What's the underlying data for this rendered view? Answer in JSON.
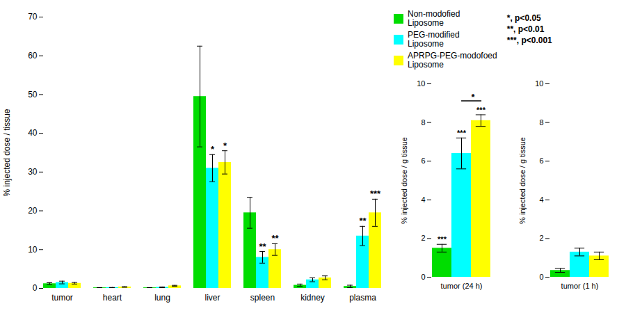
{
  "chart_data": [
    {
      "type": "bar",
      "categories": [
        "tumor",
        "heart",
        "lung",
        "liver",
        "spleen",
        "kidney",
        "plasma"
      ],
      "series": [
        {
          "name": "Non-modofied\nLiposome",
          "color": "#00dd00",
          "values": [
            1.2,
            0.15,
            0.15,
            49.5,
            19.5,
            0.8,
            0.5
          ],
          "errors": [
            0.25,
            0.04,
            0.04,
            13.0,
            4.0,
            0.3,
            0.3
          ]
        },
        {
          "name": "PEG-modified\nLiposome",
          "color": "#00ffff",
          "values": [
            1.5,
            0.18,
            0.25,
            31.0,
            8.0,
            2.2,
            13.5
          ],
          "errors": [
            0.35,
            0.04,
            0.08,
            3.5,
            1.5,
            0.5,
            2.5
          ]
        },
        {
          "name": "APRPG-PEG-modofoed\nLiposome",
          "color": "#ffff00",
          "values": [
            1.3,
            0.35,
            0.65,
            32.5,
            10.0,
            2.7,
            19.5
          ],
          "errors": [
            0.2,
            0.08,
            0.12,
            3.0,
            1.5,
            0.5,
            3.5
          ]
        }
      ],
      "ylabel": "% injected dose / tissue",
      "ylim": [
        0,
        70
      ],
      "yticks": [
        0,
        10,
        20,
        30,
        40,
        50,
        60,
        70
      ],
      "grid": false,
      "legend": "right",
      "caption": "*, p<0.05\n**, p<0.01\n***, p<0.001",
      "annotations": [
        {
          "text": "*",
          "category": "liver",
          "series": "PEG-modified\nLiposome"
        },
        {
          "text": "*",
          "category": "liver",
          "series": "APRPG-PEG-modofoed\nLiposome"
        },
        {
          "text": "**",
          "category": "spleen",
          "series": "PEG-modified\nLiposome"
        },
        {
          "text": "**",
          "category": "spleen",
          "series": "APRPG-PEG-modofoed\nLiposome"
        },
        {
          "text": "**",
          "category": "plasma",
          "series": "PEG-modified\nLiposome"
        },
        {
          "text": "***",
          "category": "plasma",
          "series": "APRPG-PEG-modofoed\nLiposome"
        }
      ]
    },
    {
      "type": "bar",
      "categories": [
        "tumor (24 h)"
      ],
      "series": [
        {
          "name": "Non-modofied\nLiposome",
          "color": "#00dd00",
          "values": [
            1.5
          ],
          "errors": [
            0.2
          ]
        },
        {
          "name": "PEG-modified\nLiposome",
          "color": "#00ffff",
          "values": [
            6.4
          ],
          "errors": [
            0.8
          ]
        },
        {
          "name": "APRPG-PEG-modofoed\nLiposome",
          "color": "#ffff00",
          "values": [
            8.1
          ],
          "errors": [
            0.3
          ]
        }
      ],
      "ylabel": "% injected dose / g tissue",
      "ylim": [
        0,
        10
      ],
      "yticks": [
        0,
        2,
        4,
        6,
        8,
        10
      ],
      "grid": false,
      "annotations": [
        {
          "text": "***",
          "category": "tumor (24 h)",
          "series": "Non-modofied\nLiposome"
        },
        {
          "text": "***",
          "category": "tumor (24 h)",
          "series": "PEG-modified\nLiposome"
        },
        {
          "text": "***",
          "category": "tumor (24 h)",
          "series": "APRPG-PEG-modofoed\nLiposome"
        },
        {
          "text": "*",
          "category": "tumor (24 h)",
          "bracket": [
            "PEG-modified\nLiposome",
            "APRPG-PEG-modofoed\nLiposome"
          ]
        }
      ]
    },
    {
      "type": "bar",
      "categories": [
        "tumor (1 h)"
      ],
      "series": [
        {
          "name": "Non-modofied\nLiposome",
          "color": "#00dd00",
          "values": [
            0.35
          ],
          "errors": [
            0.1
          ]
        },
        {
          "name": "PEG-modified\nLiposome",
          "color": "#00ffff",
          "values": [
            1.3
          ],
          "errors": [
            0.2
          ]
        },
        {
          "name": "APRPG-PEG-modofoed\nLiposome",
          "color": "#ffff00",
          "values": [
            1.1
          ],
          "errors": [
            0.2
          ]
        }
      ],
      "ylabel": "% injected dose / g tissue",
      "ylim": [
        0,
        10
      ],
      "yticks": [
        0,
        2,
        4,
        6,
        8,
        10
      ],
      "grid": false
    }
  ]
}
